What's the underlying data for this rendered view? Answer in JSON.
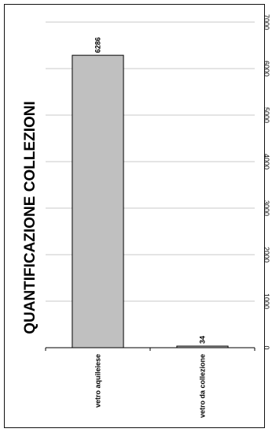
{
  "chart_data": {
    "type": "bar",
    "orientation": "vertical-categories, horizontal-values (rotated 90° clockwise)",
    "title": "QUANTIFICAZIONE COLLEZIONI",
    "categories": [
      "vetro aquileiese",
      "vetro da collezione"
    ],
    "values": [
      6286,
      34
    ],
    "value_labels": [
      "6286",
      "34"
    ],
    "ticks": [
      "0",
      "1000",
      "2000",
      "3000",
      "4000",
      "5000",
      "6000",
      "7000"
    ],
    "ylim": [
      0,
      7000
    ],
    "xlabel": "",
    "ylabel": "",
    "grid": true,
    "legend": "none",
    "bar_color": "#c0c0c0",
    "bar_edge_color": "#000000",
    "grid_color": "#c8c8c8"
  }
}
